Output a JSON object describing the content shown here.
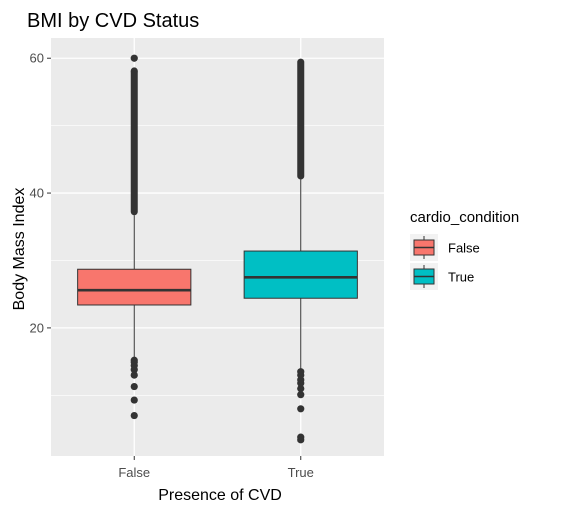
{
  "chart_data": {
    "type": "boxplot",
    "title": "BMI by CVD Status",
    "xlabel": "Presence of CVD",
    "ylabel": "Body Mass Index",
    "categories": [
      "False",
      "True"
    ],
    "ylim": [
      1,
      63
    ],
    "yticks": [
      20,
      40,
      60
    ],
    "grid": true,
    "legend": {
      "title": "cardio_condition",
      "position": "right",
      "entries": [
        {
          "label": "False",
          "color": "#F8766D"
        },
        {
          "label": "True",
          "color": "#00BFC4"
        }
      ]
    },
    "boxes": [
      {
        "category": "False",
        "color": "#F8766D",
        "whisker_low": 15.5,
        "q1": 23.4,
        "median": 25.6,
        "q3": 28.7,
        "whisker_high": 36.7,
        "outliers_low": [
          7.0,
          9.3,
          11.3,
          13.0,
          13.8,
          14.4,
          14.9,
          15.2
        ],
        "outliers_high_range": [
          36.7,
          58.0
        ],
        "outliers_high_extra": [
          58.1,
          60.0
        ]
      },
      {
        "category": "True",
        "color": "#00BFC4",
        "whisker_low": 13.9,
        "q1": 24.4,
        "median": 27.5,
        "q3": 31.4,
        "whisker_high": 42.0,
        "outliers_low": [
          3.4,
          3.8,
          8.0,
          10.1,
          11.0,
          11.8,
          12.3,
          13.0,
          13.5
        ],
        "outliers_high_range": [
          42.0,
          59.5
        ],
        "outliers_high_extra": []
      }
    ]
  },
  "colors": {
    "panel_bg": "#EBEBEB",
    "grid_major": "#FFFFFF",
    "outline": "#333333"
  }
}
